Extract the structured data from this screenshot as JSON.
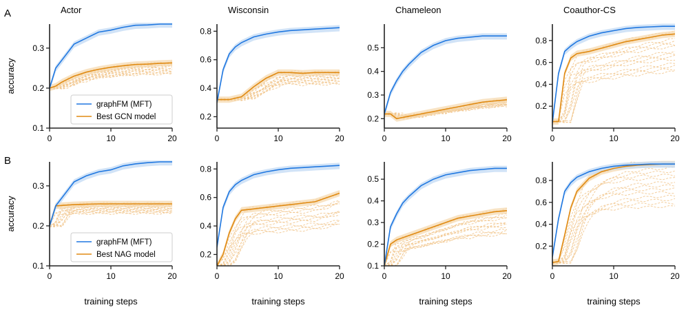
{
  "colors": {
    "mft": "#1f77e0",
    "mft_band": "#c6dcf5",
    "best": "#e08a12",
    "trial": "#f1c489",
    "band": "#f5d7ab",
    "axis": "#222222"
  },
  "chart_data": {
    "type": "line",
    "row_labels": [
      "A",
      "B"
    ],
    "xlabel": "training steps",
    "ylabel": "accuracy",
    "xlim": [
      0,
      20
    ],
    "xticks": [
      0,
      10,
      20
    ],
    "legends": [
      {
        "row": 0,
        "entries": [
          "graphFM (MFT)",
          "Best GCN model"
        ]
      },
      {
        "row": 1,
        "entries": [
          "graphFM (MFT)",
          "Best NAG model"
        ]
      }
    ],
    "panels": [
      {
        "row": 0,
        "col": 0,
        "title": "Actor",
        "ylim": [
          0.1,
          0.36
        ],
        "yticks": [
          0.1,
          0.2,
          0.3
        ],
        "mft": [
          [
            0,
            0.2
          ],
          [
            1,
            0.25
          ],
          [
            2,
            0.27
          ],
          [
            3,
            0.29
          ],
          [
            4,
            0.31
          ],
          [
            6,
            0.325
          ],
          [
            8,
            0.34
          ],
          [
            10,
            0.345
          ],
          [
            12,
            0.352
          ],
          [
            14,
            0.357
          ],
          [
            16,
            0.358
          ],
          [
            18,
            0.36
          ],
          [
            20,
            0.36
          ]
        ],
        "best": [
          [
            0,
            0.2
          ],
          [
            1,
            0.205
          ],
          [
            2,
            0.215
          ],
          [
            4,
            0.23
          ],
          [
            6,
            0.24
          ],
          [
            8,
            0.247
          ],
          [
            10,
            0.252
          ],
          [
            12,
            0.256
          ],
          [
            14,
            0.259
          ],
          [
            16,
            0.26
          ],
          [
            18,
            0.262
          ],
          [
            20,
            0.263
          ]
        ]
      },
      {
        "row": 0,
        "col": 1,
        "title": "Wisconsin",
        "ylim": [
          0.12,
          0.85
        ],
        "yticks": [
          0.2,
          0.4,
          0.6,
          0.8
        ],
        "mft": [
          [
            0,
            0.3
          ],
          [
            1,
            0.53
          ],
          [
            2,
            0.64
          ],
          [
            3,
            0.69
          ],
          [
            4,
            0.72
          ],
          [
            6,
            0.76
          ],
          [
            8,
            0.78
          ],
          [
            10,
            0.795
          ],
          [
            12,
            0.805
          ],
          [
            14,
            0.81
          ],
          [
            16,
            0.815
          ],
          [
            18,
            0.82
          ],
          [
            20,
            0.825
          ]
        ],
        "best": [
          [
            0,
            0.32
          ],
          [
            2,
            0.32
          ],
          [
            4,
            0.34
          ],
          [
            6,
            0.41
          ],
          [
            8,
            0.47
          ],
          [
            10,
            0.51
          ],
          [
            12,
            0.51
          ],
          [
            14,
            0.505
          ],
          [
            16,
            0.51
          ],
          [
            18,
            0.51
          ],
          [
            20,
            0.51
          ]
        ]
      },
      {
        "row": 0,
        "col": 2,
        "title": "Chameleon",
        "ylim": [
          0.16,
          0.6
        ],
        "yticks": [
          0.2,
          0.3,
          0.4,
          0.5
        ],
        "mft": [
          [
            0,
            0.22
          ],
          [
            1,
            0.31
          ],
          [
            2,
            0.36
          ],
          [
            3,
            0.4
          ],
          [
            4,
            0.43
          ],
          [
            6,
            0.48
          ],
          [
            8,
            0.51
          ],
          [
            10,
            0.53
          ],
          [
            12,
            0.54
          ],
          [
            14,
            0.545
          ],
          [
            16,
            0.55
          ],
          [
            18,
            0.55
          ],
          [
            20,
            0.55
          ]
        ],
        "best": [
          [
            0,
            0.22
          ],
          [
            1,
            0.22
          ],
          [
            2,
            0.2
          ],
          [
            4,
            0.21
          ],
          [
            6,
            0.22
          ],
          [
            8,
            0.23
          ],
          [
            10,
            0.24
          ],
          [
            12,
            0.25
          ],
          [
            14,
            0.26
          ],
          [
            16,
            0.27
          ],
          [
            18,
            0.275
          ],
          [
            20,
            0.28
          ]
        ]
      },
      {
        "row": 0,
        "col": 3,
        "title": "Coauthor-CS",
        "ylim": [
          0,
          0.95
        ],
        "yticks": [
          0.2,
          0.4,
          0.6,
          0.8
        ],
        "mft": [
          [
            0,
            0.05
          ],
          [
            1,
            0.5
          ],
          [
            2,
            0.7
          ],
          [
            3,
            0.75
          ],
          [
            4,
            0.79
          ],
          [
            6,
            0.84
          ],
          [
            8,
            0.87
          ],
          [
            10,
            0.89
          ],
          [
            12,
            0.91
          ],
          [
            14,
            0.92
          ],
          [
            16,
            0.925
          ],
          [
            18,
            0.93
          ],
          [
            20,
            0.93
          ]
        ],
        "best": [
          [
            0,
            0.06
          ],
          [
            1,
            0.06
          ],
          [
            2,
            0.5
          ],
          [
            3,
            0.64
          ],
          [
            4,
            0.68
          ],
          [
            6,
            0.7
          ],
          [
            8,
            0.73
          ],
          [
            10,
            0.76
          ],
          [
            12,
            0.79
          ],
          [
            14,
            0.81
          ],
          [
            16,
            0.83
          ],
          [
            18,
            0.85
          ],
          [
            20,
            0.86
          ]
        ]
      },
      {
        "row": 1,
        "col": 0,
        "title": "",
        "ylim": [
          0.1,
          0.36
        ],
        "yticks": [
          0.1,
          0.2,
          0.3
        ],
        "mft": [
          [
            0,
            0.2
          ],
          [
            1,
            0.25
          ],
          [
            2,
            0.27
          ],
          [
            3,
            0.29
          ],
          [
            4,
            0.31
          ],
          [
            6,
            0.325
          ],
          [
            8,
            0.335
          ],
          [
            10,
            0.34
          ],
          [
            12,
            0.35
          ],
          [
            14,
            0.355
          ],
          [
            16,
            0.358
          ],
          [
            18,
            0.36
          ],
          [
            20,
            0.36
          ]
        ],
        "best": [
          [
            0,
            0.2
          ],
          [
            1,
            0.25
          ],
          [
            4,
            0.253
          ],
          [
            8,
            0.255
          ],
          [
            12,
            0.255
          ],
          [
            16,
            0.255
          ],
          [
            20,
            0.255
          ]
        ]
      },
      {
        "row": 1,
        "col": 1,
        "title": "",
        "ylim": [
          0.12,
          0.85
        ],
        "yticks": [
          0.2,
          0.4,
          0.6,
          0.8
        ],
        "mft": [
          [
            0,
            0.25
          ],
          [
            1,
            0.53
          ],
          [
            2,
            0.64
          ],
          [
            3,
            0.69
          ],
          [
            4,
            0.72
          ],
          [
            6,
            0.76
          ],
          [
            8,
            0.78
          ],
          [
            10,
            0.795
          ],
          [
            12,
            0.805
          ],
          [
            14,
            0.81
          ],
          [
            16,
            0.815
          ],
          [
            18,
            0.82
          ],
          [
            20,
            0.825
          ]
        ],
        "best": [
          [
            0,
            0.12
          ],
          [
            1,
            0.2
          ],
          [
            2,
            0.35
          ],
          [
            3,
            0.45
          ],
          [
            4,
            0.51
          ],
          [
            6,
            0.52
          ],
          [
            8,
            0.53
          ],
          [
            10,
            0.54
          ],
          [
            12,
            0.55
          ],
          [
            14,
            0.56
          ],
          [
            16,
            0.57
          ],
          [
            18,
            0.6
          ],
          [
            20,
            0.63
          ]
        ]
      },
      {
        "row": 1,
        "col": 2,
        "title": "",
        "ylim": [
          0.1,
          0.58
        ],
        "yticks": [
          0.1,
          0.2,
          0.3,
          0.4,
          0.5
        ],
        "mft": [
          [
            0,
            0.1
          ],
          [
            1,
            0.28
          ],
          [
            2,
            0.34
          ],
          [
            3,
            0.39
          ],
          [
            4,
            0.42
          ],
          [
            6,
            0.47
          ],
          [
            8,
            0.5
          ],
          [
            10,
            0.52
          ],
          [
            12,
            0.53
          ],
          [
            14,
            0.54
          ],
          [
            16,
            0.545
          ],
          [
            18,
            0.55
          ],
          [
            20,
            0.55
          ]
        ],
        "best": [
          [
            0,
            0.1
          ],
          [
            1,
            0.2
          ],
          [
            2,
            0.22
          ],
          [
            4,
            0.24
          ],
          [
            6,
            0.26
          ],
          [
            8,
            0.28
          ],
          [
            10,
            0.3
          ],
          [
            12,
            0.32
          ],
          [
            14,
            0.33
          ],
          [
            16,
            0.34
          ],
          [
            18,
            0.35
          ],
          [
            20,
            0.355
          ]
        ]
      },
      {
        "row": 1,
        "col": 3,
        "title": "",
        "ylim": [
          0.02,
          0.97
        ],
        "yticks": [
          0.2,
          0.4,
          0.6,
          0.8
        ],
        "mft": [
          [
            0,
            0.1
          ],
          [
            1,
            0.45
          ],
          [
            2,
            0.7
          ],
          [
            3,
            0.78
          ],
          [
            4,
            0.83
          ],
          [
            6,
            0.88
          ],
          [
            8,
            0.91
          ],
          [
            10,
            0.93
          ],
          [
            12,
            0.94
          ],
          [
            14,
            0.945
          ],
          [
            16,
            0.95
          ],
          [
            18,
            0.95
          ],
          [
            20,
            0.95
          ]
        ],
        "best": [
          [
            0,
            0.05
          ],
          [
            1,
            0.06
          ],
          [
            2,
            0.3
          ],
          [
            3,
            0.55
          ],
          [
            4,
            0.7
          ],
          [
            6,
            0.82
          ],
          [
            8,
            0.88
          ],
          [
            10,
            0.91
          ],
          [
            12,
            0.93
          ],
          [
            14,
            0.94
          ],
          [
            16,
            0.945
          ],
          [
            18,
            0.95
          ],
          [
            20,
            0.95
          ]
        ]
      }
    ]
  }
}
